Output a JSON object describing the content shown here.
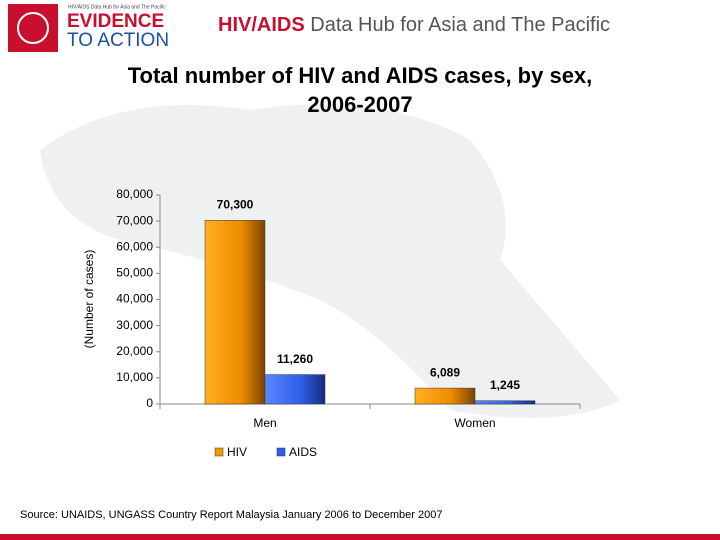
{
  "header": {
    "logo_line1": "EVIDENCE",
    "logo_line2": "TO ACTION",
    "logo_tagline": "HIV/AIDS Data Hub for Asia and The Pacific",
    "brand_bold": "HIV/AIDS",
    "brand_rest": "Data Hub for Asia and The Pacific"
  },
  "chart_data": {
    "type": "bar",
    "title": "Total number of HIV and AIDS cases, by sex,",
    "title_line2": "2006-2007",
    "y_label": "(Number of cases)",
    "categories": [
      "Men",
      "Women"
    ],
    "series": [
      {
        "name": "HIV",
        "color": "#f59a00",
        "values": [
          70300,
          6089
        ],
        "value_labels": [
          "70,300",
          "6,089"
        ]
      },
      {
        "name": "AIDS",
        "color": "#2f5fe8",
        "values": [
          11260,
          1245
        ],
        "value_labels": [
          "11,260",
          "1,245"
        ]
      }
    ],
    "ylim": [
      0,
      80000
    ],
    "yticks": [
      0,
      {
        "value": 10000,
        "label": "10,000"
      },
      {
        "value": 20000,
        "label": "20,000"
      },
      {
        "value": 30000,
        "label": "30,000"
      },
      {
        "value": 40000,
        "label": "40,000"
      },
      {
        "value": 50000,
        "label": "50,000"
      },
      {
        "value": 60000,
        "label": "60,000"
      },
      {
        "value": 70000,
        "label": "70,000"
      },
      {
        "value": 80000,
        "label": "80,000"
      }
    ],
    "source": "Source: UNAIDS, UNGASS Country Report Malaysia January 2006 to December 2007"
  }
}
